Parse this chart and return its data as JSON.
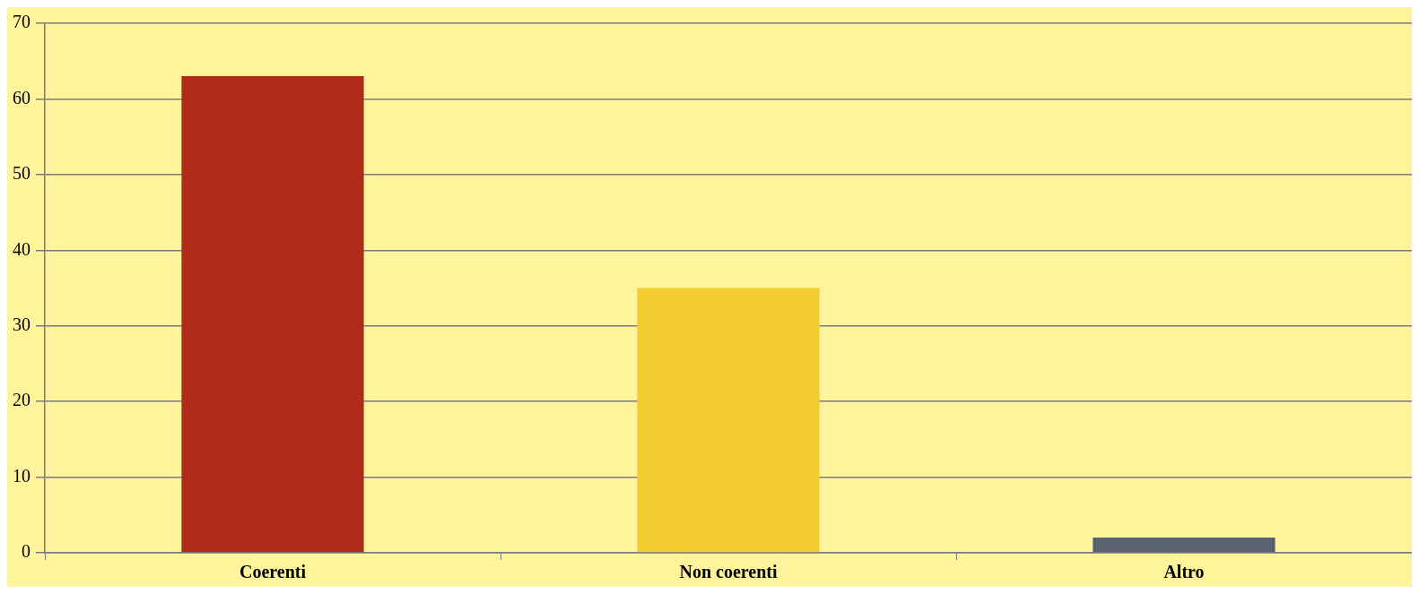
{
  "chart_data": {
    "type": "bar",
    "categories": [
      "Coerenti",
      "Non coerenti",
      "Altro"
    ],
    "values": [
      63,
      35,
      2
    ],
    "colors": [
      "#b02a18",
      "#f3cd2f",
      "#5a6170"
    ],
    "ylim": [
      0,
      70
    ],
    "yticks": [
      0,
      10,
      20,
      30,
      40,
      50,
      60,
      70
    ],
    "grid": "y",
    "legend": false
  }
}
